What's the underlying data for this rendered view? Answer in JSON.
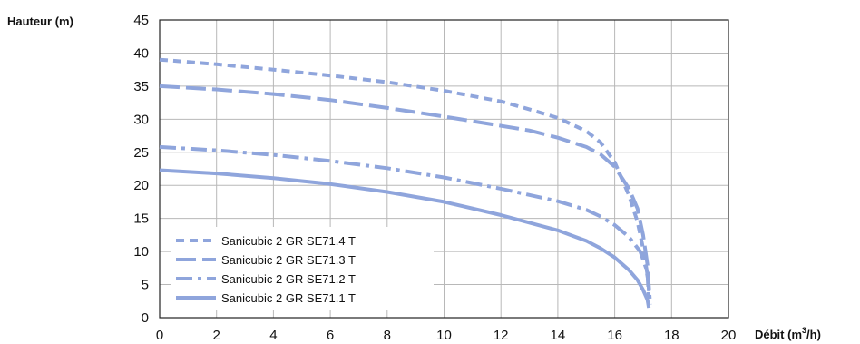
{
  "chart_data": {
    "type": "line",
    "ylabel": "Hauteur (m)",
    "xlabel_prefix": "Débit (m",
    "xlabel_sup": "3",
    "xlabel_suffix": "/h)",
    "xlim": [
      0,
      20
    ],
    "ylim": [
      0,
      45
    ],
    "xticks": [
      "0",
      "2",
      "4",
      "6",
      "8",
      "10",
      "12",
      "14",
      "16",
      "18",
      "20"
    ],
    "yticks": [
      "0",
      "5",
      "10",
      "15",
      "20",
      "25",
      "30",
      "35",
      "40",
      "45"
    ],
    "grid": true,
    "legend_position": "bottom-left",
    "line_color": "#8fa5dc",
    "series": [
      {
        "name": "Sanicubic 2 GR SE71.4 T",
        "style": "dashed-short",
        "x": [
          0,
          2,
          4,
          6,
          8,
          10,
          12,
          13,
          14,
          15,
          15.5,
          16,
          16.5,
          16.8,
          17.0,
          17.15,
          17.2
        ],
        "y": [
          39,
          38.3,
          37.5,
          36.6,
          35.6,
          34.3,
          32.7,
          31.5,
          30.2,
          28.2,
          26.5,
          23.5,
          18.5,
          14.5,
          10.5,
          6.5,
          3
        ]
      },
      {
        "name": "Sanicubic 2 GR SE71.3 T",
        "style": "dashed-long",
        "x": [
          0,
          2,
          4,
          6,
          8,
          10,
          12,
          13,
          14,
          15,
          15.5,
          16,
          16.5,
          16.8,
          17.0,
          17.15,
          17.2
        ],
        "y": [
          35,
          34.5,
          33.8,
          32.9,
          31.7,
          30.4,
          29,
          28.3,
          27.2,
          25.8,
          24.7,
          22.8,
          19.5,
          16.5,
          12.5,
          8,
          4
        ]
      },
      {
        "name": "Sanicubic 2 GR SE71.2 T",
        "style": "dash-dot",
        "x": [
          0,
          2,
          4,
          6,
          8,
          10,
          12,
          14,
          15,
          15.5,
          16,
          16.5,
          16.9,
          17.1,
          17.2,
          17.25
        ],
        "y": [
          25.8,
          25.3,
          24.6,
          23.7,
          22.6,
          21.2,
          19.5,
          17.6,
          16.3,
          15.3,
          14,
          12.2,
          10,
          7.5,
          5,
          2
        ]
      },
      {
        "name": "Sanicubic 2 GR SE71.1 T",
        "style": "solid",
        "x": [
          0,
          2,
          4,
          6,
          8,
          10,
          12,
          14,
          15,
          15.5,
          16,
          16.5,
          16.8,
          17.0,
          17.15,
          17.2
        ],
        "y": [
          22.3,
          21.8,
          21.1,
          20.2,
          19,
          17.5,
          15.5,
          13.2,
          11.6,
          10.5,
          9.1,
          7.2,
          5.7,
          4.2,
          2.7,
          1.5
        ]
      }
    ]
  }
}
